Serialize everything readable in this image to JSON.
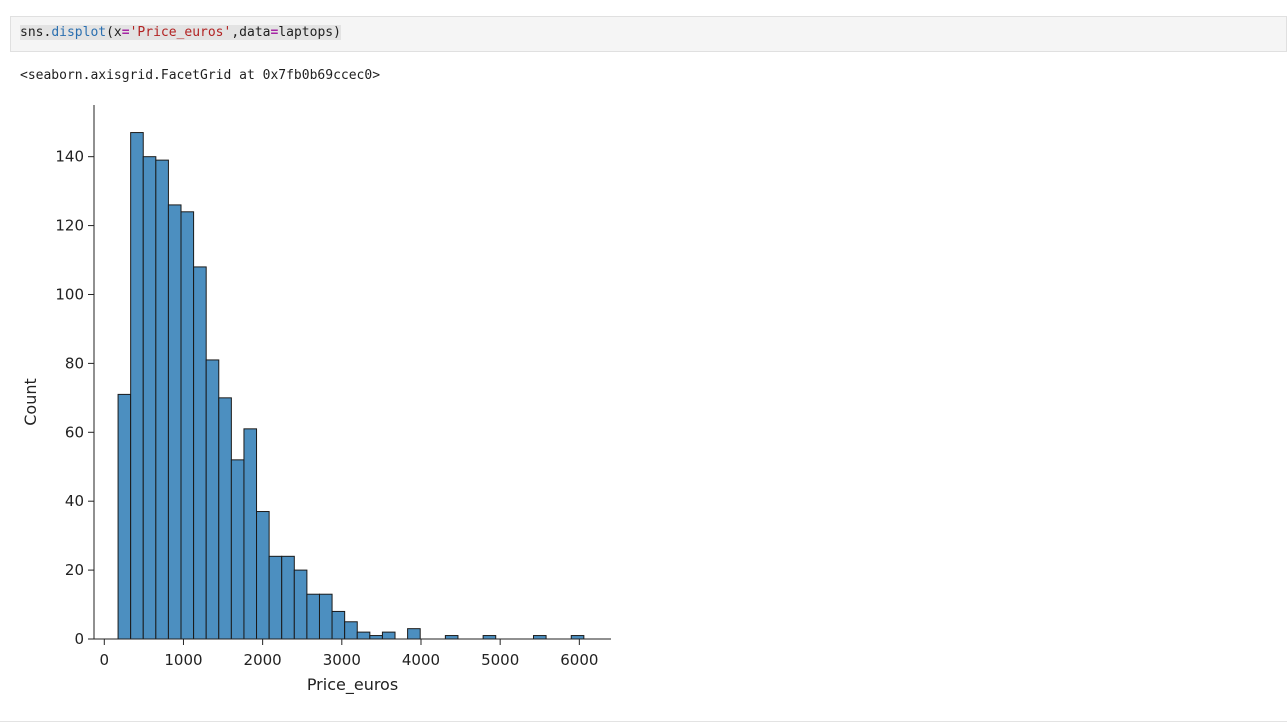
{
  "cell": {
    "code": {
      "prefix": "sns.",
      "func": "displot",
      "open": "(x",
      "eq1": "=",
      "str": "'Price_euros'",
      "mid": ",data",
      "eq2": "=",
      "suffix": "laptops)"
    },
    "output": "<seaborn.axisgrid.FacetGrid at 0x7fb0b69ccec0>"
  },
  "colors": {
    "bar_fill": "#4c8fc0",
    "bar_edge": "#1a1a1a"
  },
  "chart_data": {
    "type": "bar",
    "title": "",
    "xlabel": "Price_euros",
    "ylabel": "Count",
    "xlim": [
      -130,
      6400
    ],
    "ylim": [
      0,
      155
    ],
    "xticks": [
      0,
      1000,
      2000,
      3000,
      4000,
      5000,
      6000
    ],
    "yticks": [
      0,
      20,
      40,
      60,
      80,
      100,
      120,
      140
    ],
    "bin_width": 159,
    "bin_start": 174,
    "values": [
      71,
      147,
      140,
      139,
      126,
      124,
      108,
      81,
      70,
      52,
      61,
      37,
      24,
      24,
      20,
      13,
      13,
      8,
      5,
      2,
      1,
      2,
      0,
      3,
      0,
      0,
      1,
      0,
      0,
      1,
      0,
      0,
      0,
      1,
      0,
      0,
      1
    ],
    "grid": false,
    "legend": "none"
  }
}
